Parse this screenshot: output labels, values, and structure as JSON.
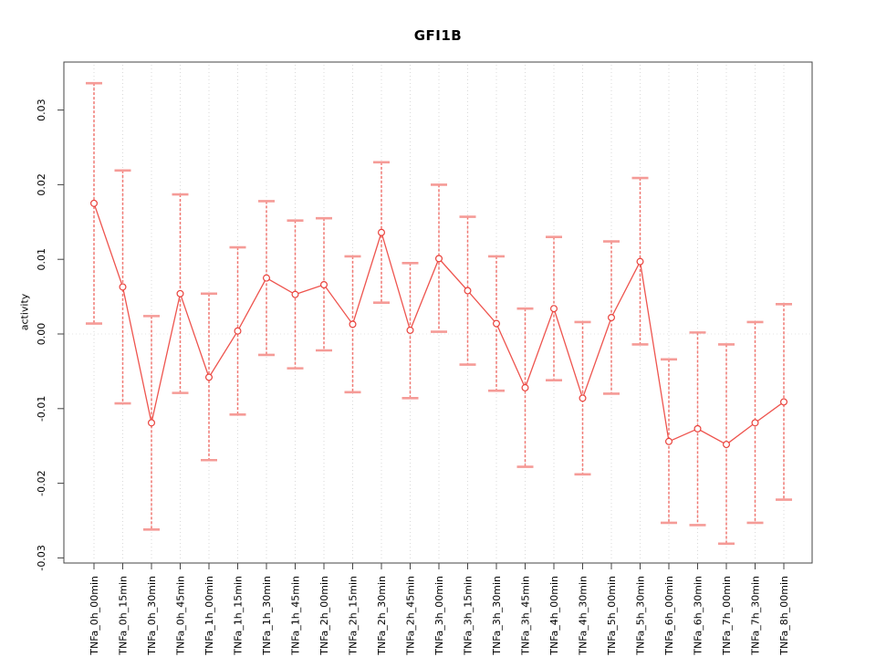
{
  "chart_data": {
    "type": "line",
    "subtype": "points-with-error-bars",
    "title": "GFI1B",
    "xlabel": "",
    "ylabel": "activity",
    "ylim": [
      -0.03,
      0.03
    ],
    "yticks": [
      0.03,
      0.02,
      0.01,
      0.0,
      -0.01,
      -0.02,
      -0.03
    ],
    "ytick_labels": [
      "0.03",
      "0.02",
      "0.01",
      "0.00",
      "-0.01",
      "-0.02",
      "-0.03"
    ],
    "grid": "vertical dotted gridline at each category; dotted horizontal line at zero; no legend",
    "legend_position": "none",
    "categories": [
      "TNFa_0h_00min",
      "TNFa_0h_15min",
      "TNFa_0h_30min",
      "TNFa_0h_45min",
      "TNFa_1h_00min",
      "TNFa_1h_15min",
      "TNFa_1h_30min",
      "TNFa_1h_45min",
      "TNFa_2h_00min",
      "TNFa_2h_15min",
      "TNFa_2h_30min",
      "TNFa_2h_45min",
      "TNFa_3h_00min",
      "TNFa_3h_15min",
      "TNFa_3h_30min",
      "TNFa_3h_45min",
      "TNFa_4h_00min",
      "TNFa_4h_30min",
      "TNFa_5h_00min",
      "TNFa_5h_30min",
      "TNFa_6h_00min",
      "TNFa_6h_30min",
      "TNFa_7h_00min",
      "TNFa_7h_30min",
      "TNFa_8h_00min"
    ],
    "series": [
      {
        "name": "activity",
        "values": [
          0.0175,
          0.0063,
          -0.0119,
          0.0054,
          -0.0058,
          0.0004,
          0.0075,
          0.0053,
          0.0066,
          0.0013,
          0.0136,
          0.0005,
          0.0101,
          0.0058,
          0.0014,
          -0.0072,
          0.0034,
          -0.0086,
          0.0022,
          0.0097,
          -0.0144,
          -0.0127,
          -0.0148,
          -0.0119,
          -0.0091
        ],
        "error_high": [
          0.0336,
          0.0219,
          0.0024,
          0.0187,
          0.0054,
          0.0116,
          0.0178,
          0.0152,
          0.0155,
          0.0104,
          0.023,
          0.0095,
          0.02,
          0.0157,
          0.0104,
          0.0034,
          0.013,
          0.0016,
          0.0124,
          0.0209,
          -0.0034,
          0.0002,
          -0.0014,
          0.0016,
          0.004
        ],
        "error_low": [
          0.0014,
          -0.0093,
          -0.0262,
          -0.0079,
          -0.0169,
          -0.0108,
          -0.0028,
          -0.0046,
          -0.0022,
          -0.0078,
          0.0042,
          -0.0086,
          0.0003,
          -0.0041,
          -0.0076,
          -0.0178,
          -0.0062,
          -0.0188,
          -0.008,
          -0.0014,
          -0.0253,
          -0.0256,
          -0.0281,
          -0.0253,
          -0.0222
        ]
      }
    ],
    "style": {
      "point_color": "#e9423c",
      "line_color": "#ee544e",
      "error_stem_color": "#ef615b",
      "error_cap_color": "#f59b97",
      "gridline_color": "#d9d9d9",
      "zero_line_color": "#e4e4e4",
      "axis_color": "#444444",
      "text_color": "#000000",
      "background": "#ffffff"
    }
  }
}
